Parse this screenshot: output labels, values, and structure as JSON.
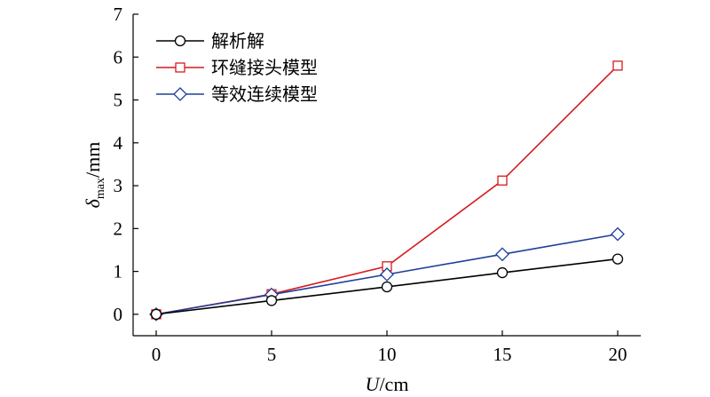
{
  "chart_data": {
    "type": "line",
    "x": [
      0,
      5,
      10,
      15,
      20
    ],
    "xlabel": {
      "var": "U",
      "unit": "/cm"
    },
    "ylabel": {
      "var": "δ",
      "sub": "max",
      "unit": "/mm"
    },
    "xlim": [
      -1,
      21
    ],
    "ylim": [
      -0.5,
      7
    ],
    "xticks": [
      "0",
      "5",
      "10",
      "15",
      "20"
    ],
    "yticks": [
      "0",
      "1",
      "2",
      "3",
      "4",
      "5",
      "6",
      "7"
    ],
    "grid": false,
    "legend_position": "top-left",
    "series": [
      {
        "name": "解析解",
        "values": [
          0,
          0.32,
          0.64,
          0.97,
          1.29
        ],
        "color": "#000000",
        "marker": "circle"
      },
      {
        "name": "环缝接头模型",
        "values": [
          0,
          0.47,
          1.12,
          3.12,
          5.8
        ],
        "color": "#d7191c",
        "marker": "square"
      },
      {
        "name": "等效连续模型",
        "values": [
          0,
          0.46,
          0.93,
          1.4,
          1.87
        ],
        "color": "#1f3f99",
        "marker": "diamond"
      }
    ]
  }
}
